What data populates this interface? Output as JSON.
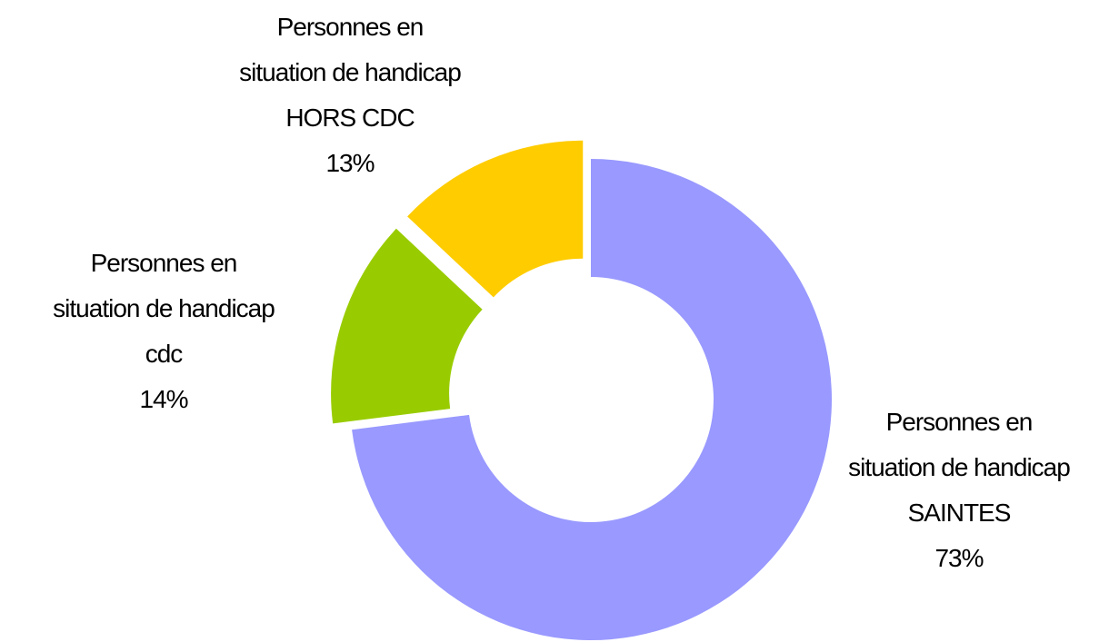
{
  "chart_data": {
    "type": "donut",
    "categories": [
      "Personnes en\nsituation de handicap\nSAINTES",
      "Personnes en\nsituation de handicap\ncdc",
      "Personnes en\nsituation de handicap\nHORS CDC"
    ],
    "values": [
      73,
      14,
      13
    ],
    "value_labels": [
      "73%",
      "14%",
      "13%"
    ],
    "colors": [
      "#9999ff",
      "#99cc00",
      "#ffcc00"
    ]
  }
}
